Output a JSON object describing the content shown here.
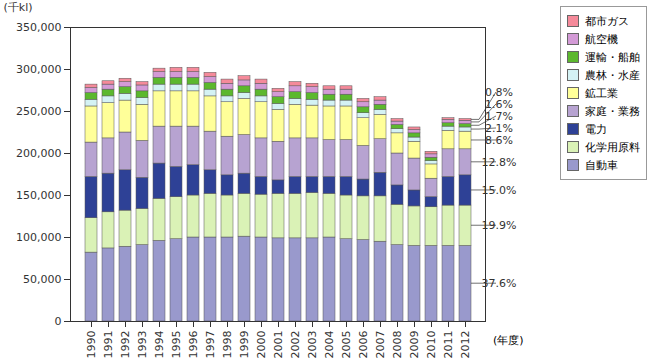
{
  "chart_data": {
    "type": "bar",
    "stacked": true,
    "grid": false,
    "legend": "right",
    "y_label": "(千kl)",
    "x_label": "(年度)",
    "categories": [
      "1990",
      "1991",
      "1992",
      "1993",
      "1994",
      "1995",
      "1996",
      "1997",
      "1998",
      "1999",
      "2000",
      "2001",
      "2002",
      "2003",
      "2004",
      "2005",
      "2006",
      "2007",
      "2008",
      "2009",
      "2010",
      "2011",
      "2012"
    ],
    "ylim": [
      0,
      350000
    ],
    "yticks": [
      0,
      {
        "value": 50000,
        "label": "50,000"
      },
      {
        "value": 100000,
        "label": "100,000"
      },
      {
        "value": 150000,
        "label": "150,000"
      },
      {
        "value": 200000,
        "label": "200,000"
      },
      {
        "value": 250000,
        "label": "250,000"
      },
      {
        "value": 300000,
        "label": "300,000"
      },
      {
        "value": 350000,
        "label": "350,000"
      }
    ],
    "series": [
      {
        "name": "自動車",
        "color": "#9999cc",
        "values": [
          82000,
          87000,
          89000,
          91000,
          96000,
          98000,
          100000,
          100000,
          100000,
          101000,
          100000,
          99000,
          99000,
          99000,
          100000,
          98000,
          97000,
          95000,
          91000,
          90000,
          90000,
          90000,
          90000
        ]
      },
      {
        "name": "化学用原料",
        "color": "#daf2b6",
        "values": [
          41000,
          43000,
          43000,
          43000,
          50000,
          50000,
          50000,
          52000,
          50000,
          51000,
          51000,
          53000,
          53000,
          54000,
          52000,
          52000,
          52000,
          54000,
          48000,
          47000,
          46000,
          48000,
          48000
        ]
      },
      {
        "name": "電力",
        "color": "#2e4196",
        "values": [
          49000,
          46000,
          48000,
          37000,
          42000,
          36000,
          36000,
          28000,
          24000,
          24000,
          21000,
          16000,
          20000,
          19000,
          20000,
          22000,
          20000,
          28000,
          23000,
          19000,
          12000,
          34000,
          36000
        ]
      },
      {
        "name": "家庭・業務",
        "color": "#b7a3d1",
        "values": [
          41000,
          42000,
          45000,
          44000,
          44000,
          48000,
          46000,
          46000,
          46000,
          46000,
          46000,
          46000,
          46000,
          46000,
          44000,
          44000,
          40000,
          40000,
          38000,
          38000,
          22000,
          33000,
          31000
        ]
      },
      {
        "name": "鉱工業",
        "color": "#ffff99",
        "values": [
          43000,
          42000,
          38000,
          43000,
          42000,
          42000,
          42000,
          42000,
          41000,
          43000,
          43000,
          38000,
          40000,
          39000,
          40000,
          40000,
          33000,
          29000,
          24000,
          20000,
          17000,
          22000,
          21000
        ]
      },
      {
        "name": "農林・水産",
        "color": "#d4f2f4",
        "values": [
          8000,
          8000,
          8000,
          8000,
          8000,
          8000,
          8000,
          8000,
          7000,
          7000,
          7000,
          7000,
          7000,
          7000,
          7000,
          7000,
          6000,
          6000,
          5000,
          5000,
          4000,
          5000,
          5000
        ]
      },
      {
        "name": "運輸・船舶",
        "color": "#5cb82e",
        "values": [
          8000,
          8000,
          8000,
          8000,
          8000,
          8000,
          8000,
          8000,
          8000,
          8000,
          8000,
          8000,
          8000,
          8000,
          7000,
          7000,
          7000,
          6000,
          5000,
          5000,
          4000,
          4000,
          4000
        ]
      },
      {
        "name": "航空機",
        "color": "#d39ad6",
        "values": [
          6000,
          6000,
          6000,
          7000,
          7000,
          7000,
          7000,
          7000,
          7000,
          7000,
          7000,
          6000,
          7000,
          7000,
          6000,
          6000,
          6000,
          5000,
          4000,
          4000,
          4000,
          4000,
          4000
        ]
      },
      {
        "name": "都市ガス",
        "color": "#f58a9a",
        "values": [
          4000,
          4000,
          4000,
          4000,
          4000,
          5000,
          5000,
          5000,
          5000,
          5000,
          5000,
          4000,
          5000,
          4000,
          4000,
          4000,
          4000,
          4000,
          3000,
          3000,
          3000,
          2000,
          2000
        ]
      }
    ],
    "annotations": [
      {
        "category": "2012",
        "series": "自動車",
        "text": "37.6%"
      },
      {
        "category": "2012",
        "series": "化学用原料",
        "text": "19.9%"
      },
      {
        "category": "2012",
        "series": "電力",
        "text": "15.0%"
      },
      {
        "category": "2012",
        "series": "家庭・業務",
        "text": "12.8%"
      },
      {
        "category": "2012",
        "series": "鉱工業",
        "text": "8.6%"
      },
      {
        "category": "2012",
        "series": "農林・水産",
        "text": "2.1%"
      },
      {
        "category": "2012",
        "series": "運輸・船舶",
        "text": "1.7%"
      },
      {
        "category": "2012",
        "series": "航空機",
        "text": "1.6%"
      },
      {
        "category": "2012",
        "series": "都市ガス",
        "text": "0.8%"
      }
    ]
  }
}
